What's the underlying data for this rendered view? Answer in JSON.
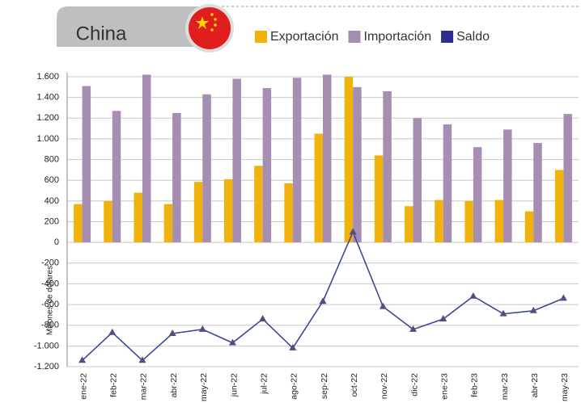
{
  "chart_data": {
    "type": "bar",
    "title": "China",
    "y_label": "Millones de dólares",
    "categories": [
      "ene-22",
      "feb-22",
      "mar-22",
      "abr-22",
      "may-22",
      "jun-22",
      "jul-22",
      "ago-22",
      "sep-22",
      "oct-22",
      "nov-22",
      "dic-22",
      "ene-23",
      "feb-23",
      "mar-23",
      "abr-23",
      "may-23"
    ],
    "series": [
      {
        "name": "Exportación",
        "color": "#f0b30e",
        "values": [
          370,
          400,
          480,
          370,
          585,
          610,
          740,
          570,
          1050,
          1600,
          840,
          350,
          410,
          400,
          410,
          300,
          700
        ]
      },
      {
        "name": "Importación",
        "color": "#a68db2",
        "values": [
          1510,
          1270,
          1620,
          1250,
          1430,
          1580,
          1490,
          1590,
          1620,
          1500,
          1460,
          1200,
          1140,
          920,
          1090,
          960,
          1240
        ]
      },
      {
        "name": "Saldo",
        "type": "line",
        "color": "#3b4898",
        "marker_color": "#5b4a82",
        "values": [
          -1140,
          -870,
          -1140,
          -880,
          -840,
          -970,
          -740,
          -1020,
          -570,
          100,
          -620,
          -840,
          -740,
          -520,
          -690,
          -660,
          -540
        ]
      }
    ],
    "ylim": [
      -1200,
      1600
    ],
    "yticks": [
      {
        "value": -1200,
        "label": "-1.200"
      },
      {
        "value": -1000,
        "label": "-1.000"
      },
      -800,
      -600,
      -400,
      -200,
      0,
      200,
      400,
      600,
      800,
      {
        "value": 1000,
        "label": "1.000"
      },
      {
        "value": 1200,
        "label": "1.200"
      },
      {
        "value": 1400,
        "label": "1.400"
      },
      {
        "value": 1600,
        "label": "1.600"
      }
    ],
    "grid": true
  }
}
